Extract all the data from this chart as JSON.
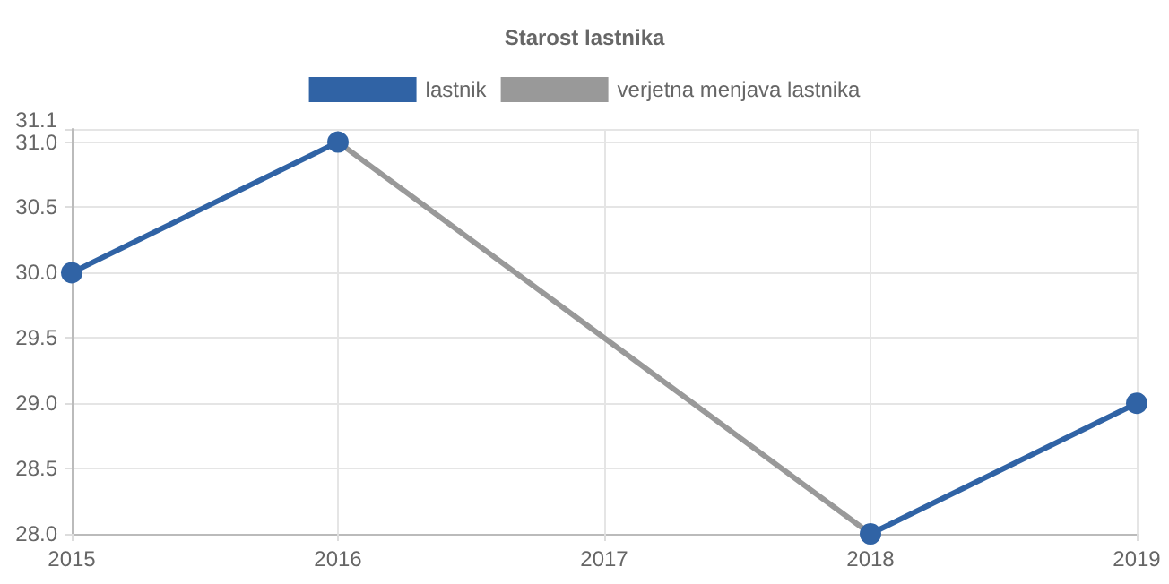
{
  "chart_data": {
    "type": "line",
    "title": "Starost lastnika",
    "x": [
      2015,
      2016,
      2017,
      2018,
      2019
    ],
    "series": [
      {
        "name": "lastnik",
        "color": "#3063a5",
        "values": [
          30,
          31,
          null,
          28,
          29
        ],
        "marker": "circle"
      },
      {
        "name": "verjetna menjava lastnika",
        "color": "#999999",
        "values": [
          null,
          31,
          29.5,
          28,
          null
        ],
        "marker": "none"
      }
    ],
    "xlim": [
      2015,
      2019
    ],
    "xticks": [
      2015,
      2016,
      2017,
      2018,
      2019
    ],
    "ylim": [
      28,
      31.1
    ],
    "yticks": [
      {
        "value": 28,
        "label": "28.0"
      },
      {
        "value": 28.5,
        "label": "28.5"
      },
      {
        "value": 29,
        "label": "29.0"
      },
      {
        "value": 29.5,
        "label": "29.5"
      },
      {
        "value": 30,
        "label": "30.0"
      },
      {
        "value": 30.5,
        "label": "30.5"
      },
      {
        "value": 31,
        "label": "31.0"
      },
      {
        "value": 31.1,
        "label": "31.1"
      }
    ],
    "grid": true,
    "legend": "top",
    "line_style": "solid"
  }
}
